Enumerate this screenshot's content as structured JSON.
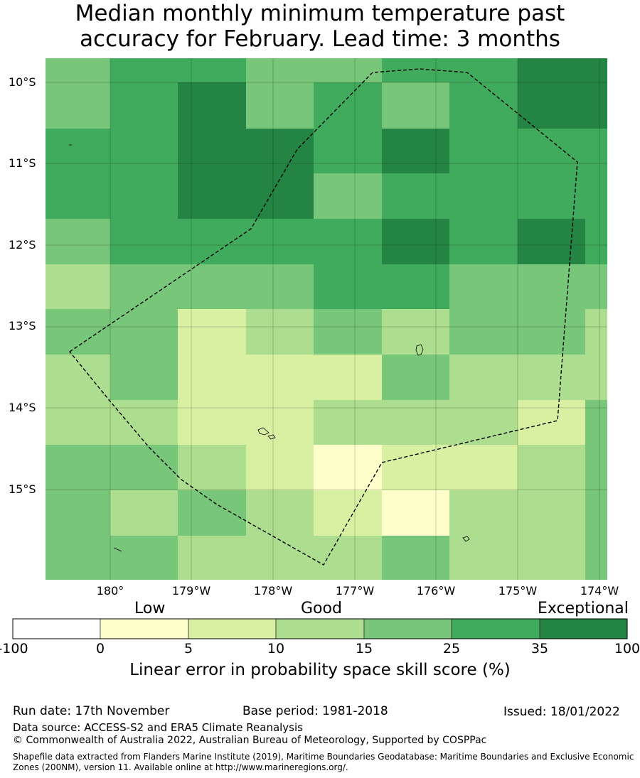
{
  "title": {
    "line1": "Median monthly minimum temperature past",
    "line2": "accuracy for February. Lead time: 3 months"
  },
  "map": {
    "y_axis_labels": [
      "10°S",
      "11°S",
      "12°S",
      "13°S",
      "14°S",
      "15°S"
    ],
    "x_axis_labels": [
      "180°",
      "179°W",
      "178°W",
      "177°W",
      "176°W",
      "175°W",
      "174°W"
    ],
    "skill_grid_levels": [
      [
        4,
        5,
        5,
        4,
        4,
        5,
        5,
        6
      ],
      [
        4,
        5,
        6,
        4,
        5,
        4,
        5,
        6
      ],
      [
        5,
        5,
        6,
        6,
        5,
        6,
        5,
        5
      ],
      [
        5,
        5,
        6,
        6,
        4,
        5,
        5,
        5
      ],
      [
        4,
        5,
        5,
        5,
        5,
        6,
        5,
        6
      ],
      [
        3,
        4,
        4,
        4,
        5,
        5,
        4,
        4
      ],
      [
        4,
        4,
        2,
        3,
        4,
        3,
        4,
        4
      ],
      [
        3,
        4,
        2,
        2,
        2,
        4,
        3,
        3
      ],
      [
        3,
        3,
        2,
        2,
        3,
        3,
        3,
        2
      ],
      [
        4,
        4,
        3,
        2,
        1,
        2,
        2,
        3
      ],
      [
        4,
        3,
        4,
        3,
        2,
        1,
        3,
        3
      ],
      [
        4,
        4,
        3,
        3,
        3,
        4,
        3,
        3
      ]
    ]
  },
  "colorbar": {
    "qualitative": {
      "low": "Low",
      "good": "Good",
      "exceptional": "Exceptional"
    },
    "boundaries": [
      "-100",
      "0",
      "5",
      "10",
      "15",
      "25",
      "35",
      "100"
    ],
    "colors": [
      "#ffffff",
      "#ffffcc",
      "#d9f0a3",
      "#addd8e",
      "#78c679",
      "#41ab5d",
      "#238443"
    ],
    "title": "Linear error in probability space skill score (%)"
  },
  "footer": {
    "run_date": "Run date: 17th November",
    "base_period": "Base period: 1981-2018",
    "issued": "Issued: 18/01/2022",
    "data_source": "Data source: ACCESS-S2 and ERA5 Climate Reanalysis",
    "copyright": "© Commonwealth of Australia 2022, Australian Bureau of Meteorology, Supported by COSPPac",
    "shapefile_line1": "Shapefile data extracted from Flanders Marine Institute (2019), Maritime Boundaries Geodatabase: Maritime Boundaries and Exclusive Economic",
    "shapefile_line2": "Zones (200NM), version 11. Available online at http://www.marineregions.org/."
  }
}
